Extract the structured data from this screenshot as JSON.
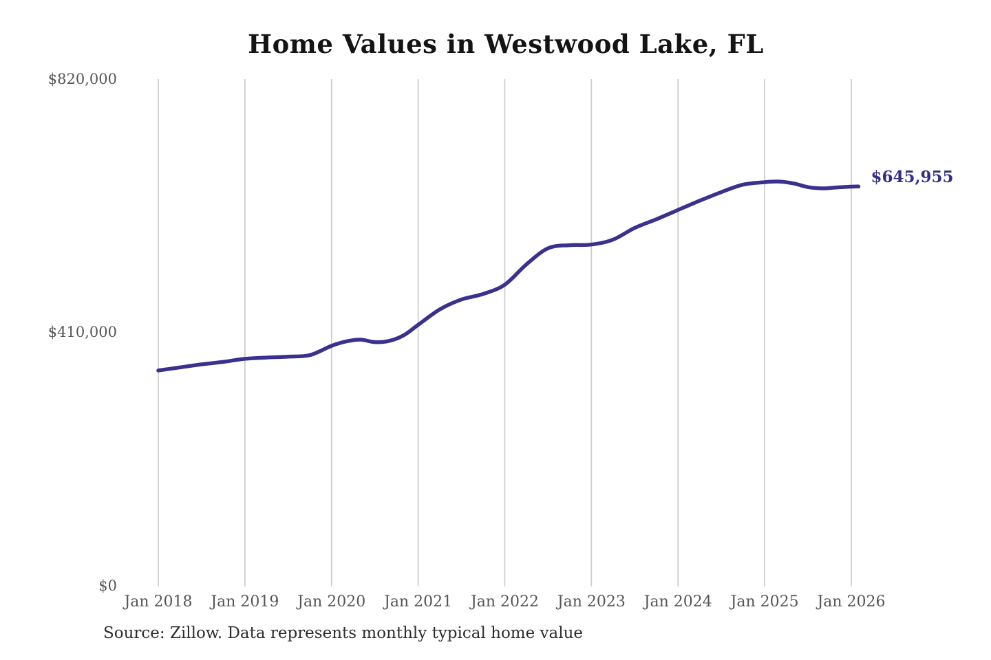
{
  "chart": {
    "title": "Home Values in Westwood Lake, FL",
    "end_label": "$645,955",
    "source": "Source: Zillow. Data represents monthly typical home value",
    "colors": {
      "line": "#3a318e",
      "end_label": "#322d88",
      "grid": "#cccccc",
      "title": "#141414",
      "axis_text": "#555555",
      "source_text": "#2d2d2d",
      "background": "#ffffff"
    }
  },
  "chart_data": {
    "type": "line",
    "title": "Home Values in Westwood Lake, FL",
    "xlabel": "",
    "ylabel": "",
    "legend": "none",
    "grid": "vertical-only",
    "ylim": [
      0,
      820000
    ],
    "y_ticks": [
      {
        "label": "$820,000",
        "value": 820000
      },
      {
        "label": "$410,000",
        "value": 410000
      },
      {
        "label": "$0",
        "value": 0
      }
    ],
    "x_ticks": [
      {
        "label": "Jan 2018",
        "date": "2018-01"
      },
      {
        "label": "Jan 2019",
        "date": "2019-01"
      },
      {
        "label": "Jan 2020",
        "date": "2020-01"
      },
      {
        "label": "Jan 2021",
        "date": "2021-01"
      },
      {
        "label": "Jan 2022",
        "date": "2022-01"
      },
      {
        "label": "Jan 2023",
        "date": "2023-01"
      },
      {
        "label": "Jan 2024",
        "date": "2024-01"
      },
      {
        "label": "Jan 2025",
        "date": "2025-01"
      },
      {
        "label": "Jan 2026",
        "date": "2026-01"
      }
    ],
    "series": [
      {
        "name": "Monthly typical home value",
        "points": [
          {
            "date": "2018-01",
            "value": 348000
          },
          {
            "date": "2018-04",
            "value": 353000
          },
          {
            "date": "2018-07",
            "value": 358000
          },
          {
            "date": "2018-10",
            "value": 362000
          },
          {
            "date": "2019-01",
            "value": 367000
          },
          {
            "date": "2019-04",
            "value": 369000
          },
          {
            "date": "2019-07",
            "value": 370500
          },
          {
            "date": "2019-10",
            "value": 373000
          },
          {
            "date": "2020-01",
            "value": 388000
          },
          {
            "date": "2020-03",
            "value": 395000
          },
          {
            "date": "2020-05",
            "value": 398000
          },
          {
            "date": "2020-07",
            "value": 394000
          },
          {
            "date": "2020-09",
            "value": 396000
          },
          {
            "date": "2020-11",
            "value": 405000
          },
          {
            "date": "2021-01",
            "value": 422000
          },
          {
            "date": "2021-04",
            "value": 447000
          },
          {
            "date": "2021-07",
            "value": 463000
          },
          {
            "date": "2021-10",
            "value": 472000
          },
          {
            "date": "2022-01",
            "value": 487000
          },
          {
            "date": "2022-04",
            "value": 520000
          },
          {
            "date": "2022-07",
            "value": 546000
          },
          {
            "date": "2022-10",
            "value": 551000
          },
          {
            "date": "2023-01",
            "value": 552000
          },
          {
            "date": "2023-04",
            "value": 560000
          },
          {
            "date": "2023-07",
            "value": 579000
          },
          {
            "date": "2023-10",
            "value": 593000
          },
          {
            "date": "2024-01",
            "value": 608000
          },
          {
            "date": "2024-04",
            "value": 623000
          },
          {
            "date": "2024-07",
            "value": 637000
          },
          {
            "date": "2024-10",
            "value": 649000
          },
          {
            "date": "2025-01",
            "value": 653000
          },
          {
            "date": "2025-03",
            "value": 654000
          },
          {
            "date": "2025-05",
            "value": 651000
          },
          {
            "date": "2025-07",
            "value": 645000
          },
          {
            "date": "2025-09",
            "value": 643000
          },
          {
            "date": "2025-11",
            "value": 644500
          },
          {
            "date": "2026-01",
            "value": 645800
          },
          {
            "date": "2026-02",
            "value": 645955
          }
        ]
      }
    ]
  }
}
